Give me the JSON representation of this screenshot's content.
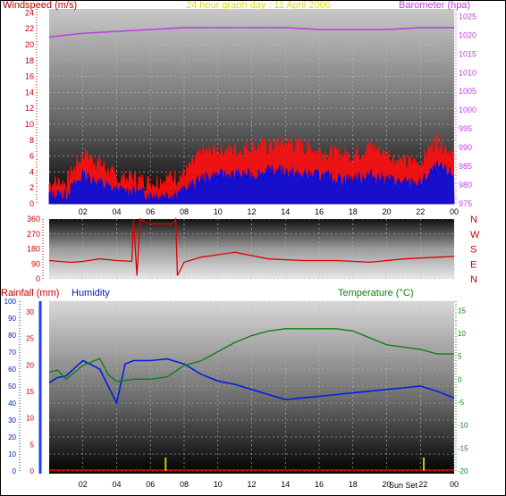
{
  "title": "24 hour graph day : 11 April 2006",
  "colors": {
    "wind": "#e00000",
    "gust_fill": "#ff1010",
    "avg_fill": "#0010e0",
    "barometer": "#c040e0",
    "direction": "#e00000",
    "rain": "#c00000",
    "humidity": "#0020e0",
    "temperature": "#108010",
    "title": "#e0e000",
    "frame": "#000000"
  },
  "chart_data": [
    {
      "id": "wind-baro",
      "type": "line",
      "left_axis_label": "Windspeed (m/s)",
      "right_axis_label": "Barometer (hpa)",
      "x_ticks": [
        "02",
        "04",
        "06",
        "08",
        "10",
        "12",
        "14",
        "16",
        "18",
        "20",
        "22",
        "00"
      ],
      "left_ticks": [
        0,
        2,
        4,
        6,
        8,
        10,
        12,
        14,
        16,
        18,
        20,
        22,
        24
      ],
      "right_ticks": [
        975,
        980,
        985,
        990,
        995,
        1000,
        1005,
        1010,
        1015,
        1020,
        1025
      ],
      "ylim_left": [
        0,
        24.5
      ],
      "ylim_right": [
        975,
        1027
      ],
      "grid": true,
      "series": [
        {
          "key": "gust",
          "x": [
            0,
            1,
            2,
            3,
            4,
            5,
            6,
            7,
            8,
            9,
            10,
            11,
            12,
            13,
            14,
            15,
            16,
            17,
            18,
            19,
            20,
            21,
            22,
            23,
            24
          ],
          "values": [
            2.5,
            2.5,
            6,
            5,
            3,
            3,
            2.5,
            3,
            3.5,
            6,
            6.5,
            6.5,
            7,
            7,
            7.5,
            7,
            6.5,
            6,
            6,
            7,
            6,
            5,
            5,
            8,
            6
          ]
        },
        {
          "key": "average",
          "x": [
            0,
            1,
            2,
            3,
            4,
            5,
            6,
            7,
            8,
            9,
            10,
            11,
            12,
            13,
            14,
            15,
            16,
            17,
            18,
            19,
            20,
            21,
            22,
            23,
            24
          ],
          "values": [
            1,
            1,
            3.5,
            2.5,
            1.5,
            1.5,
            1,
            1,
            1.5,
            3,
            3.5,
            3.5,
            3.5,
            4,
            4,
            3.5,
            3.5,
            3,
            3,
            3.5,
            3,
            2.5,
            2.5,
            4.5,
            3.5
          ]
        },
        {
          "key": "barometer",
          "x": [
            0,
            2,
            4,
            6,
            8,
            10,
            12,
            14,
            16,
            18,
            20,
            22,
            24
          ],
          "values": [
            1019.5,
            1020.5,
            1021,
            1021.5,
            1022,
            1022,
            1022,
            1022,
            1021.5,
            1021.5,
            1021.5,
            1022,
            1022
          ]
        }
      ]
    },
    {
      "id": "direction",
      "type": "line",
      "left_ticks": [
        0,
        90,
        180,
        270,
        360
      ],
      "right_labels": [
        "N",
        "W",
        "S",
        "E",
        "N"
      ],
      "ylim": [
        0,
        360
      ],
      "grid": true,
      "series": [
        {
          "key": "direction",
          "x": [
            0,
            1.2,
            1.5,
            2,
            3,
            4,
            4.9,
            5,
            5.2,
            5.4,
            5.5,
            6,
            7.3,
            7.5,
            7.6,
            8,
            9,
            11,
            13,
            15,
            17,
            19,
            21,
            23,
            24
          ],
          "values": [
            110,
            100,
            100,
            105,
            120,
            110,
            105,
            370,
            20,
            370,
            350,
            330,
            330,
            370,
            20,
            100,
            130,
            160,
            120,
            110,
            110,
            100,
            120,
            130,
            135
          ]
        }
      ]
    },
    {
      "id": "rain-hum-temp",
      "type": "line",
      "rain_axis_label": "Rainfall (mm)",
      "humidity_axis_label": "Humidity",
      "temperature_axis_label": "Temperature (°C)",
      "x_ticks": [
        "02",
        "04",
        "06",
        "08",
        "10",
        "12",
        "14",
        "16",
        "18",
        "20",
        "22",
        "00"
      ],
      "humidity_ticks": [
        0,
        10,
        20,
        30,
        40,
        50,
        60,
        70,
        80,
        90,
        100
      ],
      "rain_ticks": [
        0,
        5,
        10,
        15,
        20,
        25,
        30
      ],
      "temp_ticks": [
        -20,
        -15,
        -10,
        -5,
        0,
        5,
        10,
        15
      ],
      "ylim_humidity": [
        0,
        100
      ],
      "ylim_rain": [
        0,
        32
      ],
      "ylim_temp": [
        -20,
        17
      ],
      "markers": [
        {
          "label": "Sun Set",
          "x": 22.2
        }
      ],
      "grid": true,
      "series": [
        {
          "key": "humidity",
          "x": [
            0,
            0.5,
            1,
            2,
            3,
            4,
            4.5,
            5,
            6,
            7,
            8,
            9,
            10,
            11,
            12,
            13,
            14,
            15,
            16,
            17,
            18,
            19,
            20,
            21,
            22,
            23,
            24
          ],
          "values": [
            52,
            55,
            56,
            65,
            60,
            40,
            63,
            65,
            65,
            66,
            63,
            57,
            53,
            51,
            48,
            45,
            42,
            43,
            44,
            45,
            46,
            47,
            48,
            49,
            50,
            47,
            43
          ]
        },
        {
          "key": "temperature",
          "x": [
            0,
            0.5,
            1,
            2,
            3,
            3.5,
            4,
            5,
            6,
            7,
            8,
            9,
            10,
            11,
            12,
            13,
            14,
            15,
            16,
            17,
            18,
            19,
            20,
            21,
            22,
            23,
            24
          ],
          "values": [
            1.5,
            2,
            0,
            3,
            4.5,
            1,
            -0.5,
            0,
            0,
            0.5,
            3,
            4,
            6,
            8,
            9.5,
            10.5,
            11,
            11,
            11,
            11,
            10.5,
            9,
            7.5,
            7,
            6.5,
            5.5,
            5.5
          ]
        },
        {
          "key": "rainfall",
          "x": [
            0,
            24
          ],
          "values": [
            0,
            0
          ]
        }
      ]
    }
  ]
}
